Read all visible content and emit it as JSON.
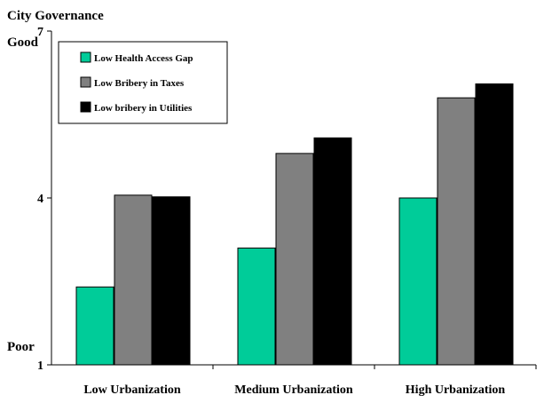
{
  "chart_data": {
    "type": "bar",
    "title": "City Governance",
    "xlabel": "",
    "ylabel": "",
    "ylim": [
      1,
      7
    ],
    "yticks": [
      1,
      4,
      7
    ],
    "y_top_label": "Good",
    "y_bottom_label": "Poor",
    "categories": [
      "Low Urbanization",
      "Medium Urbanization",
      "High Urbanization"
    ],
    "series": [
      {
        "name": "Low Health Access Gap",
        "color": "#00cc99",
        "values": [
          2.4,
          3.1,
          4.0
        ]
      },
      {
        "name": "Low Bribery in Taxes",
        "color": "#808080",
        "values": [
          4.05,
          4.8,
          5.8
        ]
      },
      {
        "name": "Low bribery in Utilities",
        "color": "#000000",
        "values": [
          4.02,
          5.08,
          6.05
        ]
      }
    ],
    "grid": false,
    "legend_position": "top-left"
  }
}
